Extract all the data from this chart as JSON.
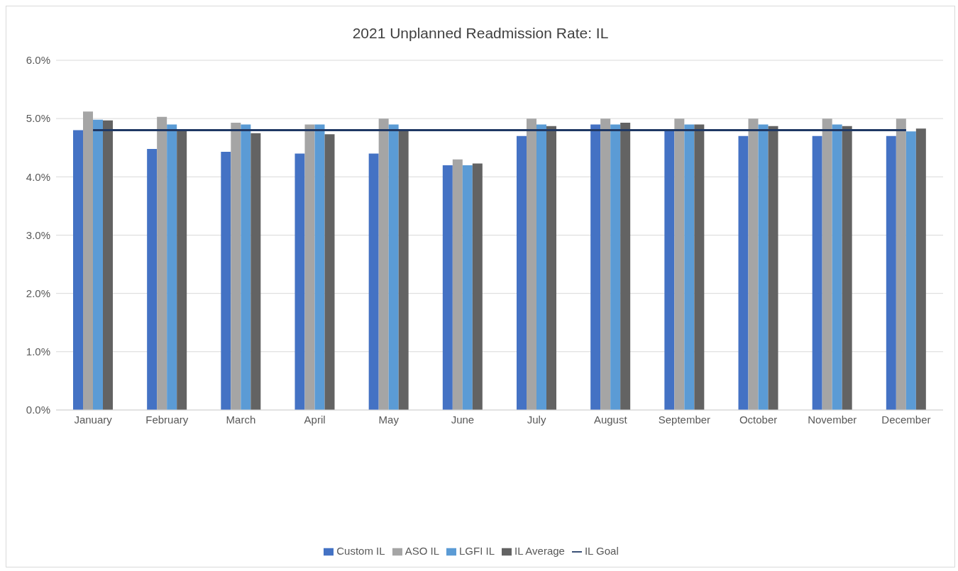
{
  "chart_data": {
    "type": "bar",
    "title": "2021 Unplanned Readmission Rate: IL",
    "categories": [
      "January",
      "February",
      "March",
      "April",
      "May",
      "June",
      "July",
      "August",
      "September",
      "October",
      "November",
      "December"
    ],
    "series": [
      {
        "name": "Custom IL",
        "color": "#4472c4",
        "values": [
          4.8,
          4.48,
          4.43,
          4.4,
          4.4,
          4.2,
          4.7,
          4.9,
          4.8,
          4.7,
          4.7,
          4.7
        ]
      },
      {
        "name": "ASO IL",
        "color": "#a5a5a5",
        "values": [
          5.12,
          5.03,
          4.93,
          4.9,
          5.0,
          4.3,
          5.0,
          5.0,
          5.0,
          5.0,
          5.0,
          5.0
        ]
      },
      {
        "name": "LGFI IL",
        "color": "#5b9bd5",
        "values": [
          4.98,
          4.9,
          4.9,
          4.9,
          4.9,
          4.2,
          4.9,
          4.9,
          4.9,
          4.9,
          4.9,
          4.78
        ]
      },
      {
        "name": "IL Average",
        "color": "#636363",
        "values": [
          4.97,
          4.8,
          4.75,
          4.73,
          4.8,
          4.23,
          4.87,
          4.93,
          4.9,
          4.87,
          4.87,
          4.83
        ]
      },
      {
        "name": "IL Goal",
        "type": "line",
        "color": "#1f3864",
        "values": [
          4.8,
          4.8,
          4.8,
          4.8,
          4.8,
          4.8,
          4.8,
          4.8,
          4.8,
          4.8,
          4.8,
          4.8
        ]
      }
    ],
    "ylim": [
      0,
      6
    ],
    "yticks": [
      {
        "value": 0,
        "label": "0.0%"
      },
      {
        "value": 1,
        "label": "1.0%"
      },
      {
        "value": 2,
        "label": "2.0%"
      },
      {
        "value": 3,
        "label": "3.0%"
      },
      {
        "value": 4,
        "label": "4.0%"
      },
      {
        "value": 5,
        "label": "5.0%"
      },
      {
        "value": 6,
        "label": "6.0%"
      }
    ],
    "grid": "y",
    "legend": "bottom",
    "marker": "none",
    "line_style": "solid"
  }
}
